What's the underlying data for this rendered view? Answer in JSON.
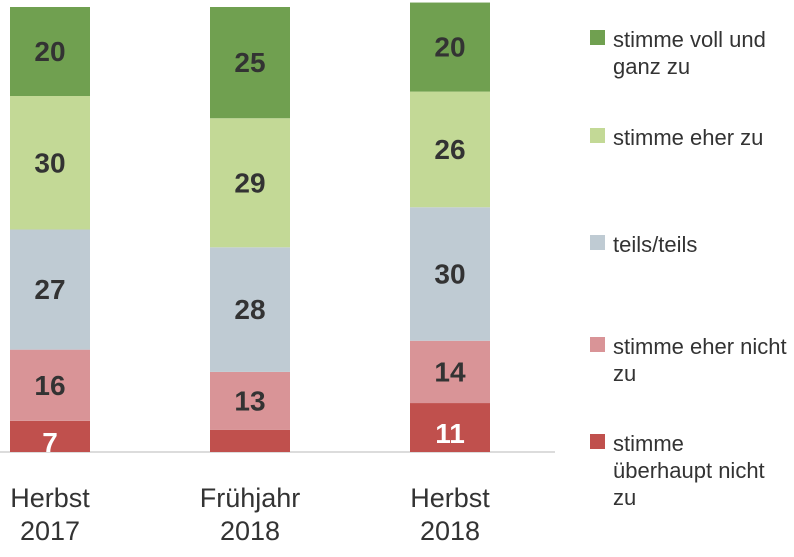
{
  "chart_data": {
    "type": "stacked_bar",
    "categories": [
      "Herbst 2017",
      "Frühjahr 2018",
      "Herbst 2018"
    ],
    "ylim": [
      0,
      100
    ],
    "series": [
      {
        "name": "stimme überhaupt nicht zu",
        "color": "#c0504d",
        "values": [
          7,
          5,
          11
        ],
        "value_labels": [
          "7",
          null,
          "11"
        ]
      },
      {
        "name": "stimme eher nicht zu",
        "color": "#d99497",
        "values": [
          16,
          13,
          14
        ]
      },
      {
        "name": "teils/teils",
        "color": "#bfcbd3",
        "values": [
          27,
          28,
          30
        ]
      },
      {
        "name": "stimme eher zu",
        "color": "#c3d996",
        "values": [
          30,
          29,
          26
        ]
      },
      {
        "name": "stimme voll und ganz zu",
        "color": "#70a050",
        "values": [
          20,
          25,
          20
        ]
      }
    ]
  }
}
